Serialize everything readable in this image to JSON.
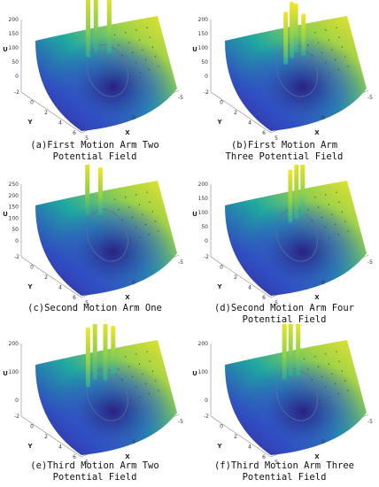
{
  "colors": {
    "low": "#3b1d8c",
    "mid": "#1fa8a0",
    "high": "#f5e625",
    "contour": "#5a6fa0"
  },
  "chart_data": [
    {
      "type": "surface3d",
      "caption_lines": [
        "(a)First Motion Arm Two",
        "Potential Field"
      ],
      "zlabel": "U",
      "xlabel": "X",
      "ylabel": "Y",
      "zticks": [
        "200",
        "150",
        "100",
        "50",
        "0"
      ],
      "xticks": [
        "5",
        "0",
        "-5"
      ],
      "yticks": [
        "-2",
        "0",
        "2",
        "4",
        "6"
      ],
      "spikes": [
        {
          "u": 0.34,
          "v": 0.3,
          "height": 200
        },
        {
          "u": 0.42,
          "v": 0.26,
          "height": 200
        },
        {
          "u": 0.52,
          "v": 0.32,
          "height": 170
        }
      ]
    },
    {
      "type": "surface3d",
      "caption_lines": [
        "(b)First Motion Arm",
        "Three Potential Field"
      ],
      "zlabel": "U",
      "xlabel": "X",
      "ylabel": "Y",
      "zticks": [
        "200",
        "150",
        "100",
        "50",
        "0"
      ],
      "xticks": [
        "5",
        "0",
        "-5"
      ],
      "yticks": [
        "-2",
        "0",
        "2",
        "4",
        "6"
      ],
      "spikes": [
        {
          "u": 0.38,
          "v": 0.4,
          "height": 150
        },
        {
          "u": 0.45,
          "v": 0.35,
          "height": 160
        },
        {
          "u": 0.5,
          "v": 0.3,
          "height": 140
        },
        {
          "u": 0.55,
          "v": 0.36,
          "height": 120
        }
      ]
    },
    {
      "type": "surface3d",
      "caption_lines": [
        "(c)Second Motion Arm One"
      ],
      "zlabel": "U",
      "xlabel": "X",
      "ylabel": "Y",
      "zticks": [
        "250",
        "200",
        "150",
        "100",
        "50",
        "0"
      ],
      "xticks": [
        "5",
        "0",
        "-5"
      ],
      "yticks": [
        "-2",
        "0",
        "2",
        "4",
        "6"
      ],
      "spikes": [
        {
          "u": 0.36,
          "v": 0.22,
          "height": 200
        },
        {
          "u": 0.46,
          "v": 0.26,
          "height": 170
        }
      ]
    },
    {
      "type": "surface3d",
      "caption_lines": [
        "(d)Second Motion Arm Four",
        "Potential Field"
      ],
      "zlabel": "U",
      "xlabel": "X",
      "ylabel": "Y",
      "zticks": [
        "200",
        "150",
        "100",
        "50",
        "0"
      ],
      "xticks": [
        "5",
        "0",
        "-5"
      ],
      "yticks": [
        "-2",
        "0",
        "2",
        "4",
        "6"
      ],
      "spikes": [
        {
          "u": 0.44,
          "v": 0.34,
          "height": 150
        },
        {
          "u": 0.5,
          "v": 0.32,
          "height": 170
        },
        {
          "u": 0.56,
          "v": 0.3,
          "height": 160
        }
      ]
    },
    {
      "type": "surface3d",
      "caption_lines": [
        "(e)Third Motion Arm Two",
        "Potential Field"
      ],
      "zlabel": "U",
      "xlabel": "X",
      "ylabel": "Y",
      "zticks": [
        "200",
        "100",
        "0"
      ],
      "xticks": [
        "5",
        "0",
        "-5"
      ],
      "yticks": [
        "-2",
        "0",
        "2",
        "4",
        "6"
      ],
      "spikes": [
        {
          "u": 0.32,
          "v": 0.36,
          "height": 170
        },
        {
          "u": 0.4,
          "v": 0.3,
          "height": 200
        },
        {
          "u": 0.48,
          "v": 0.34,
          "height": 180
        },
        {
          "u": 0.56,
          "v": 0.3,
          "height": 140
        }
      ]
    },
    {
      "type": "surface3d",
      "caption_lines": [
        "(f)Third Motion Arm Three",
        "Potential Field"
      ],
      "zlabel": "U",
      "xlabel": "X",
      "ylabel": "Y",
      "zticks": [
        "200",
        "100",
        "0"
      ],
      "xticks": [
        "5",
        "0",
        "-5"
      ],
      "yticks": [
        "-2",
        "0",
        "2",
        "4",
        "6"
      ],
      "spikes": [
        {
          "u": 0.4,
          "v": 0.3,
          "height": 170
        },
        {
          "u": 0.46,
          "v": 0.28,
          "height": 180
        },
        {
          "u": 0.52,
          "v": 0.3,
          "height": 160
        }
      ]
    }
  ]
}
